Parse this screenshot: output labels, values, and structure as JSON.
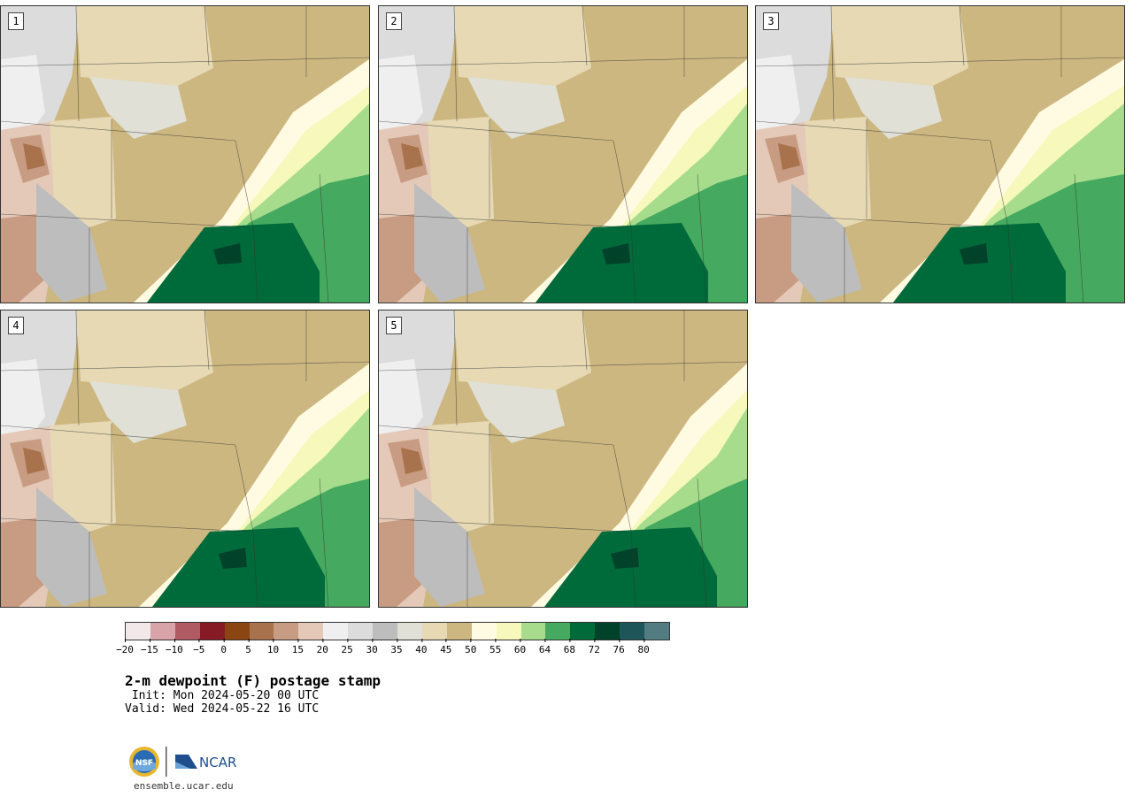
{
  "panels": [
    {
      "label": "1"
    },
    {
      "label": "2"
    },
    {
      "label": "3"
    },
    {
      "label": "4"
    },
    {
      "label": "5"
    }
  ],
  "colorbar": {
    "colors": [
      "#f2e8ea",
      "#d9a3aa",
      "#b05a63",
      "#861b25",
      "#8a4512",
      "#a8724c",
      "#c89c82",
      "#e4c9b8",
      "#efefef",
      "#dcdcdc",
      "#bdbdbd",
      "#e0e0d6",
      "#e6d9b4",
      "#cdb780",
      "#fffbe3",
      "#f6f8bc",
      "#a7dc8d",
      "#45aa5f",
      "#006b3a",
      "#00422a",
      "#1e5558",
      "#527b82"
    ],
    "tick_labels": [
      "−20",
      "−15",
      "−10",
      "−5",
      "0",
      "5",
      "10",
      "15",
      "20",
      "25",
      "30",
      "35",
      "40",
      "45",
      "50",
      "55",
      "60",
      "64",
      "68",
      "72",
      "76",
      "80"
    ]
  },
  "title": "2-m dewpoint (F) postage stamp",
  "init": " Init: Mon 2024-05-20 00 UTC",
  "valid": "Valid: Wed 2024-05-22 16 UTC",
  "logos": {
    "nsf": "NSF",
    "ncar": "NCAR"
  },
  "site": "ensemble.ucar.edu"
}
